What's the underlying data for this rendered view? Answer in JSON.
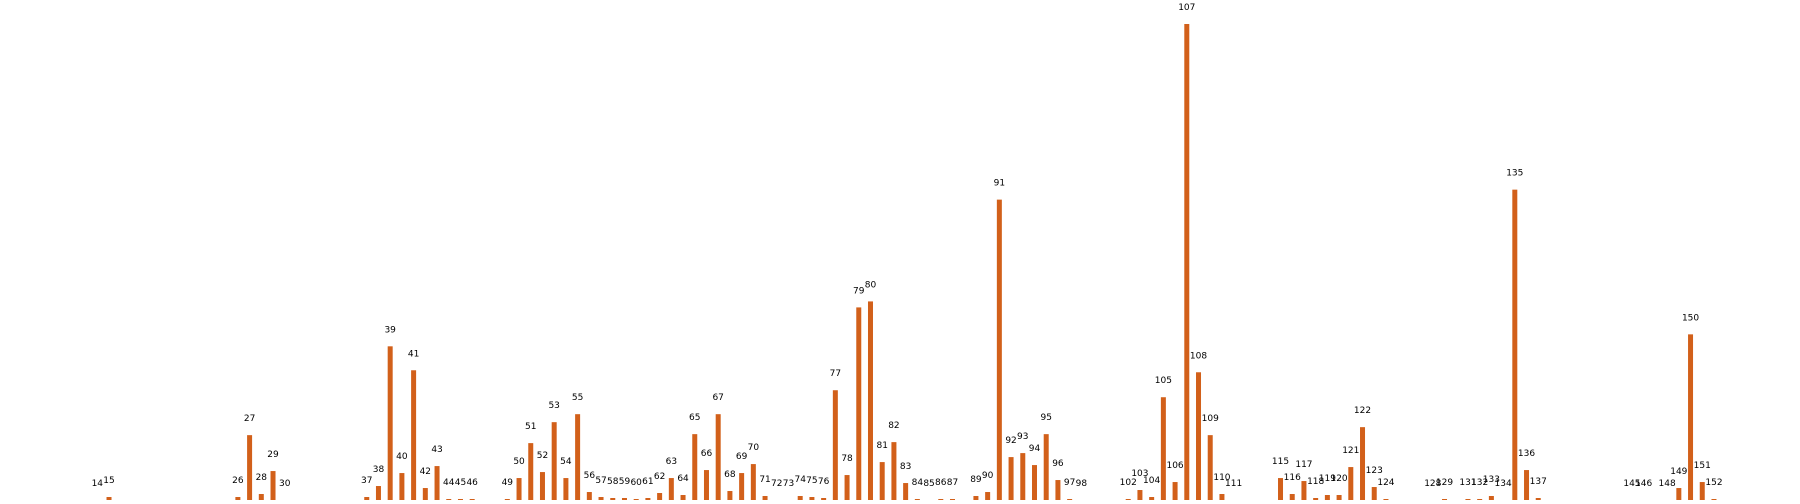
{
  "chart_data": {
    "type": "bar",
    "color": "#d2601a",
    "categories": [
      14,
      15,
      26,
      27,
      28,
      29,
      30,
      37,
      38,
      39,
      40,
      41,
      42,
      43,
      44,
      45,
      46,
      49,
      50,
      51,
      52,
      53,
      54,
      55,
      56,
      57,
      58,
      59,
      60,
      61,
      62,
      63,
      64,
      65,
      66,
      67,
      68,
      69,
      70,
      71,
      72,
      73,
      74,
      75,
      76,
      77,
      78,
      79,
      80,
      81,
      82,
      83,
      84,
      85,
      86,
      87,
      89,
      90,
      91,
      92,
      93,
      94,
      95,
      96,
      97,
      98,
      102,
      103,
      104,
      105,
      106,
      107,
      108,
      109,
      110,
      111,
      115,
      116,
      117,
      118,
      119,
      120,
      121,
      122,
      123,
      124,
      128,
      129,
      131,
      132,
      133,
      134,
      135,
      136,
      137,
      145,
      146,
      148,
      149,
      150,
      151,
      152
    ],
    "values": [
      0,
      3,
      3,
      65,
      6,
      29,
      0,
      3,
      14,
      154,
      27,
      130,
      12,
      34,
      1,
      1,
      1,
      1,
      22,
      57,
      28,
      78,
      22,
      86,
      8,
      3,
      2,
      2,
      1,
      2,
      7,
      22,
      5,
      66,
      30,
      86,
      9,
      27,
      36,
      4,
      0,
      0,
      4,
      3,
      2,
      110,
      25,
      193,
      199,
      38,
      58,
      17,
      1,
      0,
      1,
      1,
      4,
      8,
      301,
      43,
      47,
      35,
      66,
      20,
      1,
      0,
      1,
      10,
      3,
      103,
      18,
      477,
      128,
      65,
      6,
      0,
      22,
      6,
      19,
      2,
      5,
      5,
      33,
      73,
      13,
      1,
      0,
      1,
      1,
      1,
      4,
      0,
      311,
      30,
      2,
      0,
      0,
      0,
      12,
      166,
      18,
      1
    ],
    "ylim": [
      0,
      477
    ]
  }
}
